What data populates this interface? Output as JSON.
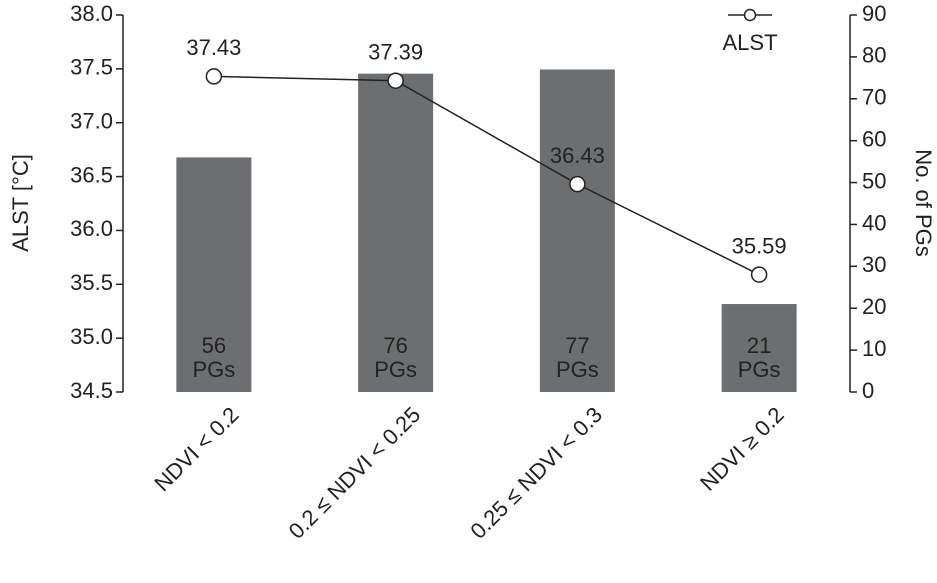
{
  "chart_data": {
    "type": "bar",
    "ylabel": "ALST [°C]",
    "y2label": "No. of PGs",
    "categories": [
      "NDVI < 0.2",
      "0.2 ≤ NDVI < 0.25",
      "0.25 ≤ NDVI < 0.3",
      "NDVI ≥ 0.2"
    ],
    "ylim": [
      34.5,
      38.0
    ],
    "yticks": [
      34.5,
      {
        "value": 35,
        "label": "35.0"
      },
      35.5,
      {
        "value": 36,
        "label": "36.0"
      },
      36.5,
      {
        "value": 37,
        "label": "37.0"
      },
      37.5,
      {
        "value": 38,
        "label": "38.0"
      }
    ],
    "y2lim": [
      0,
      90
    ],
    "y2ticks": [
      0,
      10,
      20,
      30,
      40,
      50,
      60,
      70,
      80,
      90
    ],
    "legend": "upper right",
    "series": [
      {
        "type": "bar",
        "axis": "y2",
        "color": "#6d6e70",
        "values": [
          56,
          76,
          77,
          21
        ],
        "value_labels": [
          "56 PGs",
          "76 PGs",
          "77 PGs",
          "21 PGs"
        ]
      },
      {
        "type": "line",
        "name": "ALST",
        "color": "#222222",
        "values": [
          37.43,
          37.39,
          36.43,
          35.59
        ]
      }
    ]
  }
}
